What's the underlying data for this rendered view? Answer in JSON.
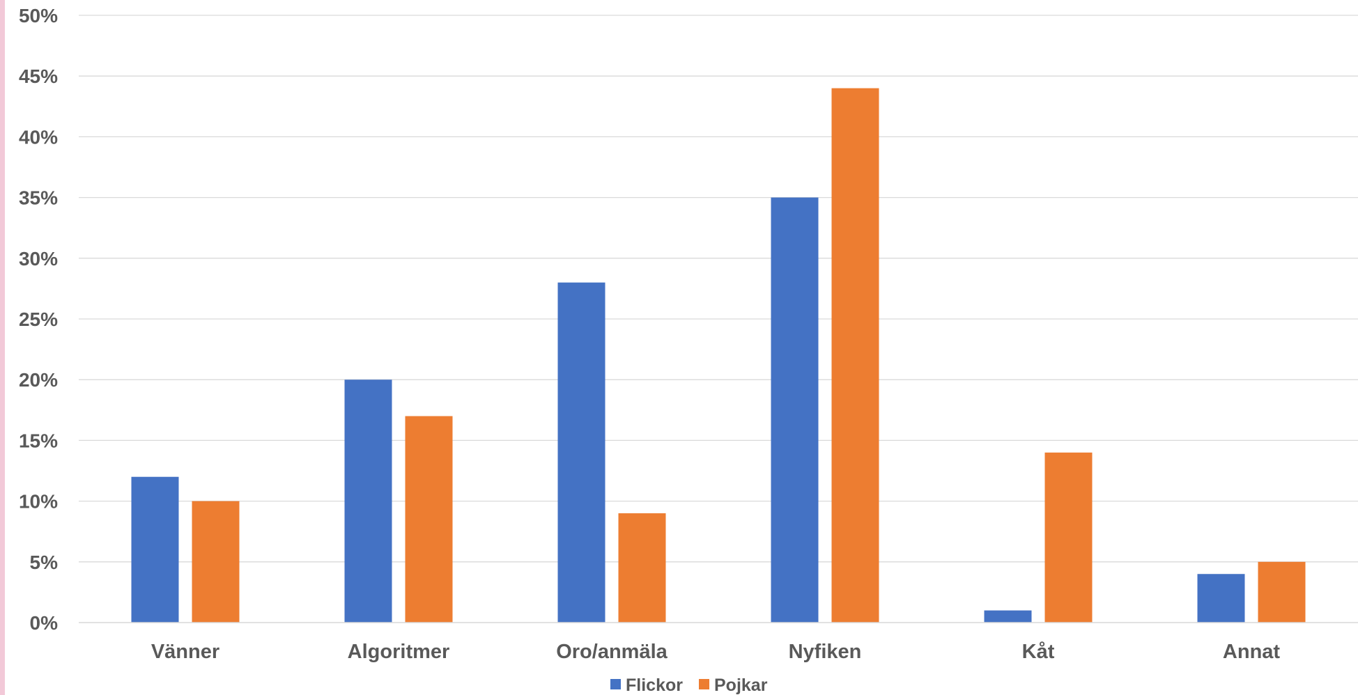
{
  "chart_data": {
    "type": "bar",
    "categories": [
      "Vänner",
      "Algoritmer",
      "Oro/anmäla",
      "Nyfiken",
      "Kåt",
      "Annat"
    ],
    "series": [
      {
        "name": "Flickor",
        "values": [
          12,
          20,
          28,
          35,
          1,
          4
        ],
        "color": "#4472C4"
      },
      {
        "name": "Pojkar",
        "values": [
          10,
          17,
          9,
          44,
          14,
          5
        ],
        "color": "#ED7D31"
      }
    ],
    "ylim": [
      0,
      50
    ],
    "yticks": [
      0,
      5,
      10,
      15,
      20,
      25,
      30,
      35,
      40,
      45,
      50
    ],
    "ytick_format": "{v}%",
    "grid": true,
    "legend": "bottom-center",
    "title": "",
    "xlabel": "",
    "ylabel": ""
  }
}
